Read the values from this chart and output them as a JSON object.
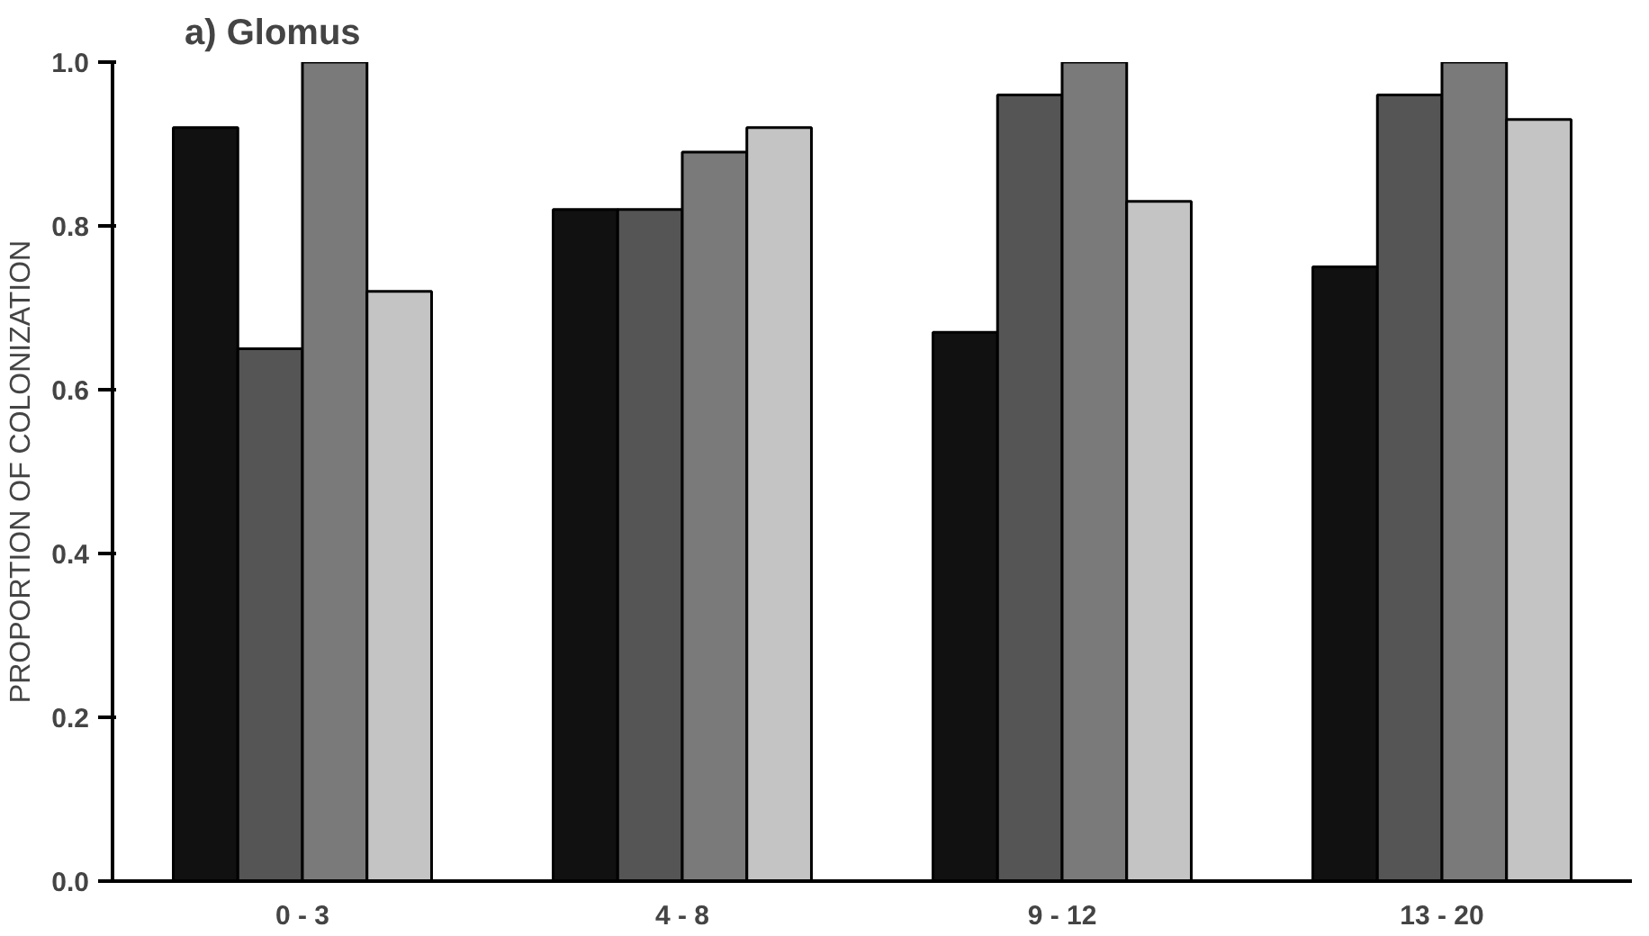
{
  "chart_data": {
    "type": "bar",
    "title": "a) Glomus",
    "ylabel": "PROPORTION OF COLONIZATION",
    "categories": [
      "0 - 3",
      "4 - 8",
      "9 - 12",
      "13 - 20"
    ],
    "series": [
      {
        "color": "#111111",
        "values": [
          0.92,
          0.82,
          0.67,
          0.75
        ]
      },
      {
        "color": "#555555",
        "values": [
          0.65,
          0.82,
          0.96,
          0.96
        ]
      },
      {
        "color": "#7a7a7a",
        "values": [
          1.0,
          0.89,
          1.0,
          1.0
        ]
      },
      {
        "color": "#c4c4c4",
        "values": [
          0.72,
          0.92,
          0.83,
          0.93
        ]
      }
    ],
    "ylim": [
      0,
      1.0
    ],
    "yticks": [
      {
        "value": 0,
        "label": "0.0"
      },
      0.2,
      0.4,
      0.6,
      0.8,
      {
        "value": 1.0,
        "label": "1.0"
      }
    ],
    "grid": false
  }
}
